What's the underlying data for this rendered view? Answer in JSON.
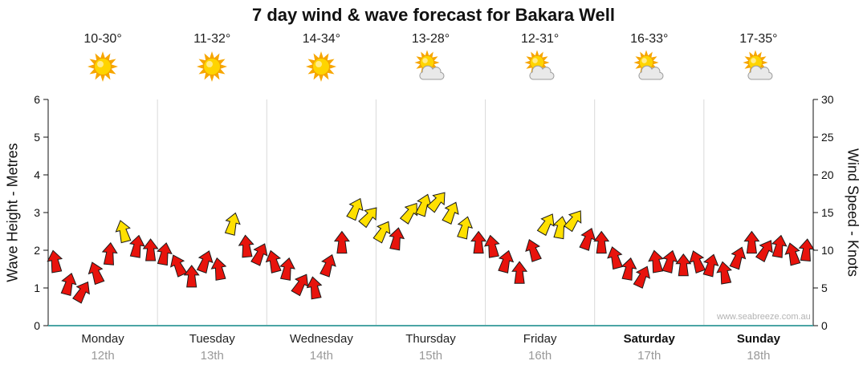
{
  "title": "7 day wind & wave forecast for Bakara Well",
  "watermark": "www.seabreeze.com.au",
  "days": [
    {
      "name": "Monday",
      "date": "12th",
      "temp": "10-30°",
      "icon": "sunny",
      "weekend": false
    },
    {
      "name": "Tuesday",
      "date": "13th",
      "temp": "11-32°",
      "icon": "sunny",
      "weekend": false
    },
    {
      "name": "Wednesday",
      "date": "14th",
      "temp": "14-34°",
      "icon": "sunny",
      "weekend": false
    },
    {
      "name": "Thursday",
      "date": "15th",
      "temp": "13-28°",
      "icon": "partly-cloudy",
      "weekend": false
    },
    {
      "name": "Friday",
      "date": "16th",
      "temp": "12-31°",
      "icon": "partly-cloudy",
      "weekend": false
    },
    {
      "name": "Saturday",
      "date": "17th",
      "temp": "16-33°",
      "icon": "partly-cloudy",
      "weekend": true
    },
    {
      "name": "Sunday",
      "date": "18th",
      "temp": "17-35°",
      "icon": "partly-cloudy",
      "weekend": true
    }
  ],
  "chart_data": {
    "type": "wind-arrows",
    "left_axis": {
      "label": "Wave Height - Metres",
      "min": 0,
      "max": 6,
      "ticks": [
        0,
        1,
        2,
        3,
        4,
        5,
        6
      ]
    },
    "right_axis": {
      "label": "Wind Speed - Knots",
      "min": 0,
      "max": 30,
      "ticks": [
        0,
        5,
        10,
        15,
        20,
        25,
        30
      ]
    },
    "points_per_day": 8,
    "colors": {
      "low": "#e8130c",
      "high": "#ffe000",
      "outline": "#1a1a1a",
      "axis_bottom": "#4aa5a5",
      "day_separator": "#d9d9d9",
      "high_threshold_knots": 12
    },
    "series": [
      {
        "day": "Monday",
        "knots": [
          8.5,
          5.5,
          4.5,
          7,
          9.5,
          12.5,
          10.5,
          10
        ],
        "dirs": [
          -10,
          15,
          30,
          -20,
          5,
          -15,
          10,
          0
        ]
      },
      {
        "day": "Tuesday",
        "knots": [
          9.5,
          8,
          6.5,
          8.5,
          7.5,
          13.5,
          10.5,
          9.5
        ],
        "dirs": [
          10,
          -25,
          0,
          20,
          -10,
          15,
          -5,
          25
        ]
      },
      {
        "day": "Wednesday",
        "knots": [
          8.5,
          7.5,
          5.5,
          5,
          8,
          11,
          15.5,
          14.5
        ],
        "dirs": [
          -15,
          10,
          30,
          -10,
          20,
          0,
          25,
          40
        ]
      },
      {
        "day": "Thursday",
        "knots": [
          12.5,
          11.5,
          15,
          16,
          16.5,
          15,
          13,
          11
        ],
        "dirs": [
          30,
          10,
          35,
          20,
          40,
          25,
          15,
          0
        ]
      },
      {
        "day": "Friday",
        "knots": [
          10.5,
          8.5,
          7,
          10,
          13.5,
          13,
          14,
          11.5
        ],
        "dirs": [
          -10,
          15,
          0,
          -20,
          30,
          10,
          35,
          20
        ]
      },
      {
        "day": "Saturday",
        "knots": [
          11,
          9,
          7.5,
          6.5,
          8.5,
          8.5,
          8,
          8.5
        ],
        "dirs": [
          0,
          -15,
          10,
          25,
          -10,
          15,
          0,
          -20
        ]
      },
      {
        "day": "Sunday",
        "knots": [
          8,
          7,
          9,
          11,
          10,
          10.5,
          9.5,
          10
        ],
        "dirs": [
          15,
          -10,
          20,
          0,
          30,
          10,
          -15,
          5
        ]
      }
    ]
  }
}
